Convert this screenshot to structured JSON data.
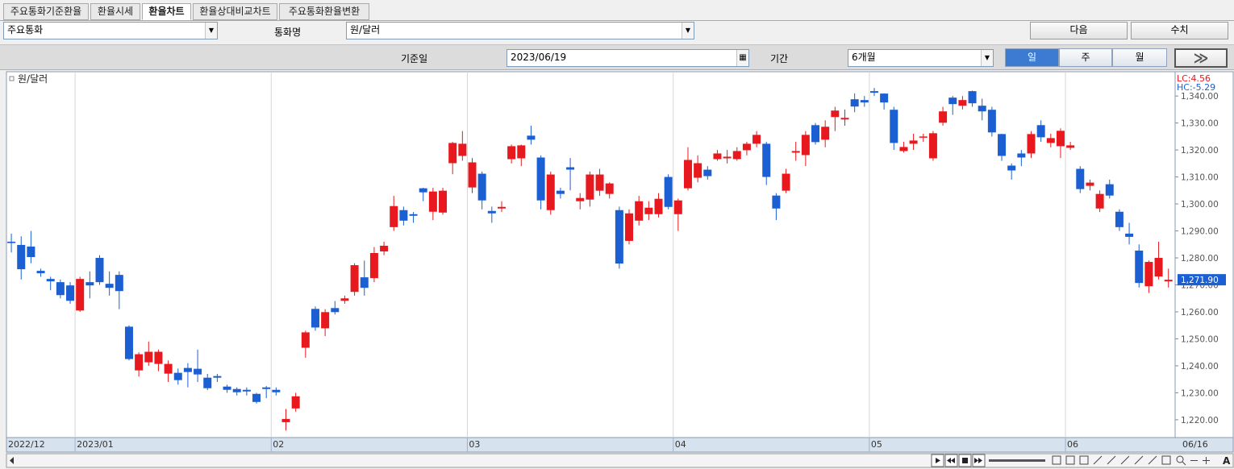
{
  "toolbar": {
    "tabs": [
      "주요통화기준환율",
      "환율시세",
      "환율차트",
      "환율상대비교차트",
      "주요통화환율변환"
    ],
    "group_select": "주요통화",
    "currency_label": "통화명",
    "currency_select": "원/달러",
    "next_button": "다음",
    "values_button": "수치",
    "base_date_label": "기준일",
    "base_date": "2023/06/19",
    "period_label": "기간",
    "period_select": "6개월",
    "interval_buttons": [
      "일",
      "주",
      "월"
    ],
    "go_button": "≫",
    "font_button": "A"
  },
  "chart_data": {
    "type": "candlestick",
    "series": [
      {
        "name": "원/달러",
        "open": [
          1286,
          1284.8,
          1284.2,
          1275.2,
          1272.2,
          1271,
          1269.8,
          1260.5,
          1271,
          1280,
          1270.4,
          1273.7,
          1254.5,
          1238.3,
          1241.3,
          1240.7,
          1237.1,
          1237.4,
          1239.2,
          1238.9,
          1235.6,
          1236.2,
          1232.3,
          1231.4,
          1231.1,
          1229.6,
          1232,
          1231.1,
          1219.1,
          1224.2,
          1246.7,
          1261.1,
          1253.9,
          1261.4,
          1264.1,
          1267.4,
          1272.8,
          1272.5,
          1282.4,
          1291.4,
          1297.7,
          1296.2,
          1305.8,
          1297.1,
          1296.8,
          1315.1,
          1317.8,
          1306.1,
          1311.2,
          1297.4,
          1298.3,
          1316.6,
          1316.9,
          1325.3,
          1317.2,
          1297.7,
          1304.9,
          1313.6,
          1301,
          1301.6,
          1304.9,
          1303.7,
          1297.7,
          1286.3,
          1293.8,
          1296.2,
          1296.2,
          1310,
          1296.2,
          1305.8,
          1309.7,
          1312.7,
          1316.6,
          1316.9,
          1316.6,
          1319.9,
          1322.3,
          1322.3,
          1303.1,
          1304.9,
          1319,
          1318.1,
          1329.2,
          1323.8,
          1332.2,
          1331.3,
          1338.8,
          1338.5,
          1341.8,
          1340.9,
          1334.9,
          1319.6,
          1322.3,
          1324.7,
          1316.9,
          1330.1,
          1339.4,
          1336.4,
          1341.8,
          1336.4,
          1334.9,
          1325.9,
          1314.2,
          1318.7,
          1318.7,
          1329.2,
          1322.6,
          1321.4,
          1320.8,
          1313,
          1306.7,
          1298.3,
          1307.3,
          1297.1,
          1289,
          1282.7,
          1269.5,
          1273.1,
          1271.3
        ],
        "high": [
          1289,
          1288,
          1290,
          1276,
          1273,
          1272,
          1271,
          1273,
          1275,
          1281,
          1275,
          1275,
          1255,
          1245,
          1249,
          1246,
          1242,
          1239,
          1241,
          1246,
          1237,
          1237,
          1233,
          1232,
          1232,
          1230,
          1232.5,
          1232,
          1224,
          1230,
          1253,
          1262,
          1261,
          1264,
          1266,
          1278,
          1279,
          1284,
          1286,
          1303,
          1299,
          1297,
          1306,
          1306,
          1306,
          1323,
          1327,
          1317,
          1312,
          1299,
          1301,
          1322,
          1322,
          1329,
          1318,
          1312,
          1306,
          1317,
          1304,
          1312,
          1313,
          1308,
          1299,
          1298,
          1303,
          1301,
          1304,
          1311,
          1302,
          1321,
          1318,
          1314,
          1320,
          1320,
          1321,
          1323,
          1327,
          1323,
          1304,
          1313,
          1323,
          1327,
          1330,
          1331,
          1336,
          1335,
          1341,
          1340,
          1343,
          1341,
          1336,
          1323,
          1326,
          1326,
          1327,
          1336,
          1340,
          1340,
          1342,
          1339,
          1336,
          1326,
          1315,
          1320,
          1327,
          1331,
          1326,
          1328,
          1323,
          1314,
          1309,
          1305,
          1309,
          1298,
          1293,
          1285,
          1279,
          1286,
          1276
        ],
        "low": [
          1282,
          1272,
          1278,
          1273,
          1268,
          1265,
          1263,
          1260,
          1265,
          1270,
          1266,
          1261,
          1242,
          1236,
          1240,
          1238,
          1234,
          1233,
          1232,
          1234,
          1231,
          1234,
          1230,
          1229,
          1229,
          1226,
          1228,
          1229,
          1216,
          1223,
          1243,
          1253,
          1251,
          1259,
          1263,
          1266,
          1266,
          1271,
          1281,
          1290,
          1292,
          1293,
          1301,
          1294,
          1296,
          1311,
          1316,
          1304,
          1298,
          1293,
          1297,
          1315,
          1314,
          1322,
          1298,
          1296,
          1302,
          1305,
          1298,
          1299,
          1303,
          1302,
          1276,
          1285,
          1292,
          1294,
          1295,
          1298,
          1290,
          1305,
          1308,
          1309,
          1316,
          1315,
          1316,
          1318,
          1321,
          1307,
          1294,
          1304,
          1316,
          1314,
          1322,
          1321,
          1327,
          1329,
          1334,
          1336,
          1340,
          1335,
          1320,
          1319,
          1320,
          1323,
          1316,
          1329,
          1333,
          1335,
          1336,
          1331,
          1325,
          1316,
          1309,
          1314,
          1317,
          1323,
          1321,
          1317,
          1320,
          1304,
          1305,
          1297,
          1302,
          1290,
          1285,
          1269,
          1267,
          1272,
          1269
        ],
        "close": [
          1285.5,
          1275.8,
          1280.3,
          1274.3,
          1271.3,
          1266.2,
          1264.1,
          1272.2,
          1269.8,
          1271,
          1268.9,
          1267.7,
          1242.5,
          1244.3,
          1245.2,
          1245.2,
          1240.7,
          1234.7,
          1237.7,
          1236.8,
          1231.7,
          1235.6,
          1231.1,
          1230.2,
          1230.5,
          1226.6,
          1231.4,
          1230.2,
          1220.3,
          1228.7,
          1252.4,
          1254.2,
          1259.9,
          1259.9,
          1265,
          1277.3,
          1268.9,
          1281.8,
          1284.5,
          1299.2,
          1293.8,
          1295.6,
          1304.3,
          1304.6,
          1304.9,
          1322.6,
          1322.3,
          1315.4,
          1301.3,
          1296.5,
          1298.9,
          1321.4,
          1321.7,
          1323.8,
          1301.3,
          1310.9,
          1303.7,
          1312.7,
          1302.2,
          1310.9,
          1310.9,
          1307.6,
          1277.9,
          1296.5,
          1301,
          1298.6,
          1301.9,
          1298.9,
          1301.3,
          1316.3,
          1315.1,
          1310.3,
          1318.7,
          1317.5,
          1319.6,
          1322.3,
          1325.6,
          1310,
          1298.3,
          1311.2,
          1319.6,
          1325.6,
          1322.9,
          1328.6,
          1334.6,
          1331.9,
          1336.1,
          1337.6,
          1341.2,
          1337.6,
          1322.6,
          1321.1,
          1323.5,
          1325,
          1326.2,
          1334.3,
          1337,
          1338.5,
          1337.3,
          1334.3,
          1326.5,
          1317.8,
          1312.4,
          1317.2,
          1325.9,
          1324.7,
          1324.4,
          1327.1,
          1321.7,
          1305.5,
          1307.9,
          1303.7,
          1303.1,
          1291.4,
          1287.8,
          1270.7,
          1278.5,
          1280,
          1271.9
        ]
      }
    ],
    "up_color": "#e8191e",
    "down_color": "#1b5fd3",
    "categories": [
      "2022/12",
      null,
      null,
      null,
      null,
      null,
      null,
      "2023/01",
      null,
      null,
      null,
      null,
      null,
      null,
      null,
      null,
      null,
      null,
      null,
      null,
      null,
      null,
      null,
      null,
      null,
      null,
      null,
      "02",
      null,
      null,
      null,
      null,
      null,
      null,
      null,
      null,
      null,
      null,
      null,
      null,
      null,
      null,
      null,
      null,
      null,
      null,
      null,
      "03",
      null,
      null,
      null,
      null,
      null,
      null,
      null,
      null,
      null,
      null,
      null,
      null,
      null,
      null,
      null,
      null,
      null,
      null,
      null,
      null,
      "04",
      null,
      null,
      null,
      null,
      null,
      null,
      null,
      null,
      null,
      null,
      null,
      null,
      null,
      null,
      null,
      null,
      null,
      null,
      null,
      "05",
      null,
      null,
      null,
      null,
      null,
      null,
      null,
      null,
      null,
      null,
      null,
      null,
      null,
      null,
      null,
      null,
      null,
      null,
      null,
      "06",
      null,
      null,
      null,
      null,
      null,
      null,
      null,
      null,
      null,
      "06/16"
    ],
    "ylim": [
      1213.7,
      1348.7
    ],
    "yticks": [
      {
        "value": 1220,
        "label": "1,220.00"
      },
      {
        "value": 1230,
        "label": "1,230.00"
      },
      {
        "value": 1240,
        "label": "1,240.00"
      },
      {
        "value": 1250,
        "label": "1,250.00"
      },
      {
        "value": 1260,
        "label": "1,260.00"
      },
      {
        "value": 1270,
        "label": "1,270.00"
      },
      {
        "value": 1280,
        "label": "1,280.00"
      },
      {
        "value": 1290,
        "label": "1,290.00"
      },
      {
        "value": 1300,
        "label": "1,300.00"
      },
      {
        "value": 1310,
        "label": "1,310.00"
      },
      {
        "value": 1320,
        "label": "1,320.00"
      },
      {
        "value": 1330,
        "label": "1,330.00"
      },
      {
        "value": 1340,
        "label": "1,340.00"
      }
    ],
    "current_value": {
      "value": 1271.9,
      "label": "1,271.90"
    },
    "annotations": [
      "LC:4.56",
      "HC:-5.29"
    ]
  }
}
